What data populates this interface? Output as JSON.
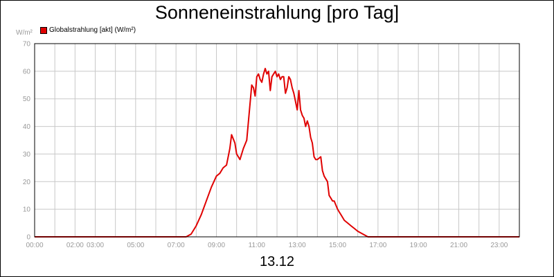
{
  "chart_data": {
    "type": "line",
    "title": "Sonneneinstrahlung [pro Tag]",
    "ylabel": "W/m²",
    "xlabel": "13.12",
    "ylim": [
      0,
      70
    ],
    "xlim_hours": [
      0,
      24
    ],
    "y_ticks": [
      "0",
      "10",
      "20",
      "30",
      "40",
      "50",
      "60",
      "70"
    ],
    "x_ticks": [
      "00:00",
      "02:00",
      "03:00",
      "05:00",
      "07:00",
      "09:00",
      "11:00",
      "13:00",
      "15:00",
      "17:00",
      "19:00",
      "21:00",
      "23:00"
    ],
    "grid": true,
    "legend_position": "top-left",
    "series": [
      {
        "name": "Globalstrahlung [akt] (W/m²)",
        "color": "#e00000",
        "x": [
          "00:00",
          "07:30",
          "07:45",
          "08:00",
          "08:15",
          "08:30",
          "08:45",
          "09:00",
          "09:10",
          "09:20",
          "09:30",
          "09:40",
          "09:45",
          "09:55",
          "10:00",
          "10:10",
          "10:20",
          "10:30",
          "10:45",
          "10:50",
          "10:55",
          "11:00",
          "11:05",
          "11:10",
          "11:15",
          "11:20",
          "11:25",
          "11:30",
          "11:35",
          "11:40",
          "11:45",
          "11:50",
          "11:55",
          "12:00",
          "12:05",
          "12:10",
          "12:15",
          "12:20",
          "12:25",
          "12:30",
          "12:35",
          "12:40",
          "12:45",
          "12:50",
          "13:00",
          "13:05",
          "13:10",
          "13:15",
          "13:20",
          "13:25",
          "13:30",
          "13:35",
          "13:40",
          "13:45",
          "13:50",
          "13:55",
          "14:00",
          "14:10",
          "14:15",
          "14:20",
          "14:25",
          "14:30",
          "14:35",
          "14:40",
          "14:45",
          "14:50",
          "15:00",
          "15:05",
          "15:10",
          "15:20",
          "15:30",
          "15:40",
          "15:50",
          "16:00",
          "16:15",
          "16:30",
          "16:45",
          "17:00",
          "24:00"
        ],
        "values": [
          0,
          0,
          1,
          4,
          8,
          13,
          18,
          22,
          23,
          25,
          26,
          32,
          37,
          34,
          30,
          28,
          32,
          35,
          55,
          54,
          51,
          58,
          59,
          57,
          56,
          59,
          61,
          59,
          60,
          53,
          58,
          59,
          60,
          58,
          59,
          57,
          58,
          58,
          52,
          54,
          58,
          57,
          54,
          52,
          46,
          53,
          46,
          44,
          43,
          40,
          42,
          40,
          36,
          34,
          29,
          28,
          28,
          29,
          24,
          22,
          21,
          20,
          15,
          14,
          13,
          13,
          10,
          9,
          8,
          6,
          5,
          4,
          3,
          2,
          1,
          0,
          0,
          0,
          0
        ]
      }
    ]
  },
  "legend": {
    "label": "Globalstrahlung [akt] (W/m²)",
    "color": "#e00000"
  },
  "header": {
    "title": "Sonneneinstrahlung [pro Tag]",
    "y_unit": "W/m²"
  },
  "footer": {
    "date": "13.12"
  }
}
